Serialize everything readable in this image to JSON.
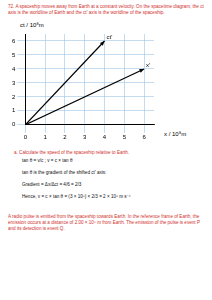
{
  "question": {
    "number": "72.",
    "text": "A spaceship moves away from Earth at a constant velocity. On the spacetime diagram, the ct axis is the worldline of Earth and the ct′ axis is the worldline of the spaceship."
  },
  "chart_data": {
    "type": "line",
    "x_label": "x / 10⁸m",
    "y_label": "ct / 10⁸m",
    "series": [
      {
        "name": "ct′",
        "color": "#000000",
        "x": [
          0,
          4
        ],
        "values": [
          0,
          6
        ]
      },
      {
        "name": "x′",
        "color": "#000000",
        "x": [
          0,
          6
        ],
        "values": [
          0,
          4
        ]
      }
    ],
    "xlim": [
      0,
      6.5
    ],
    "xticks": [
      0,
      1,
      2,
      3,
      4,
      5,
      6
    ],
    "ylim": [
      0,
      6.5
    ],
    "yticks": [
      0,
      1,
      2,
      3,
      4,
      5,
      6
    ],
    "grid": true
  },
  "part_a": {
    "label": "a.",
    "prompt": "Calculate the speed of the spaceship relative to Earth.",
    "working": [
      "tan θ = v/c ; v = c × tan θ",
      "tan θ is the gradient of the shifted ct′ axis:",
      "Gradient = Δx/Δct = 4/6 = 2/3",
      "Hence, v = c × tan θ = (3 × 10⁸) × 2/3 = 2 × 10⁸ m s⁻¹"
    ]
  },
  "part_b_intro": "A radio pulse is emitted from the spaceship towards Earth. In the reference frame of Earth, the emission occurs at a distance of 2.00 × 10⁸ m from Earth. The emission of the pulse is event P and its detection is event Q."
}
